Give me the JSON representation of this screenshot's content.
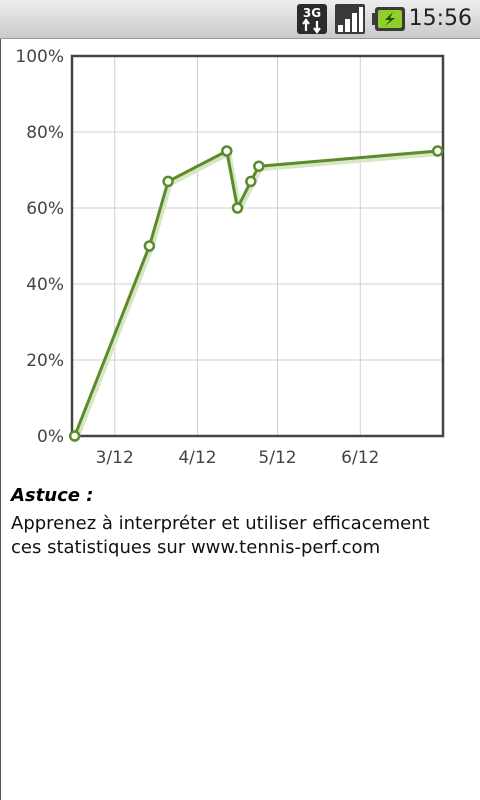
{
  "status_bar": {
    "network_type": "3G",
    "time": "15:56",
    "icons": [
      "3g-data-icon",
      "signal-icon",
      "battery-charging-icon"
    ]
  },
  "chart_data": {
    "type": "line",
    "x_tick_labels": [
      "3/12",
      "4/12",
      "5/12",
      "6/12"
    ],
    "y_tick_labels": [
      "0%",
      "20%",
      "40%",
      "60%",
      "80%",
      "100%"
    ],
    "ylim": [
      0,
      100
    ],
    "grid": true,
    "series": [
      {
        "color": "#5b8b2a",
        "points": [
          {
            "x": "2012-02-15",
            "y": 0
          },
          {
            "x": "2012-03-14",
            "y": 50
          },
          {
            "x": "2012-03-21",
            "y": 67
          },
          {
            "x": "2012-04-12",
            "y": 75
          },
          {
            "x": "2012-04-16",
            "y": 60
          },
          {
            "x": "2012-04-21",
            "y": 67
          },
          {
            "x": "2012-04-24",
            "y": 71
          },
          {
            "x": "2012-06-30",
            "y": 75
          }
        ]
      }
    ]
  },
  "tip": {
    "title": "Astuce :",
    "line1": "Apprenez à interpréter et utiliser efficacement",
    "line2": "ces statistiques sur www.tennis-perf.com"
  }
}
